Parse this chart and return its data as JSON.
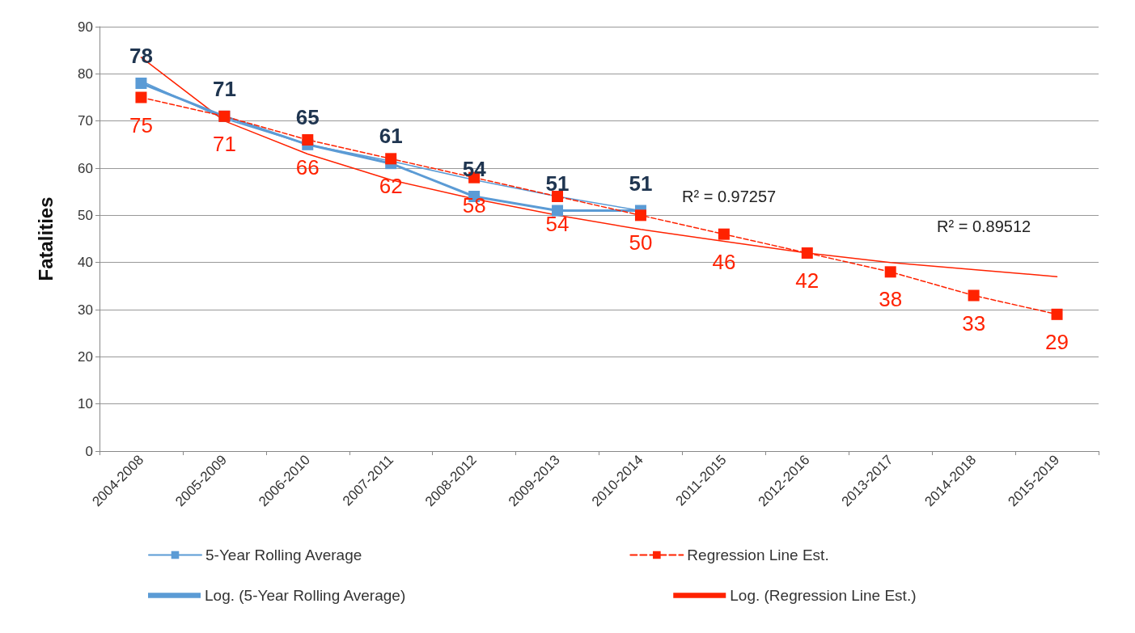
{
  "chart_data": {
    "type": "line",
    "ylabel": "Fatalities",
    "categories": [
      "2004-2008",
      "2005-2009",
      "2006-2010",
      "2007-2011",
      "2008-2012",
      "2009-2013",
      "2010-2014",
      "2011-2015",
      "2012-2016",
      "2013-2017",
      "2014-2018",
      "2015-2019"
    ],
    "series": [
      {
        "name": "5-Year Rolling Average",
        "color": "#5b9bd5",
        "marker": "square",
        "line_style": "solid",
        "data_labels": true,
        "values": [
          78,
          71,
          65,
          61,
          54,
          51,
          51,
          null,
          null,
          null,
          null,
          null
        ]
      },
      {
        "name": "Regression Line Est.",
        "color": "#ff2200",
        "marker": "square",
        "line_style": "dashed",
        "data_labels": true,
        "values": [
          75,
          71,
          66,
          62,
          58,
          54,
          50,
          46,
          42,
          38,
          33,
          29
        ]
      },
      {
        "name": "Log. (5-Year Rolling Average)",
        "color": "#5b9bd5",
        "marker": "none",
        "line_style": "solid",
        "values": [
          78.5,
          70.5,
          65,
          61.5,
          57.5,
          54,
          51,
          null,
          null,
          null,
          null,
          null
        ]
      },
      {
        "name": "Log. (Regression Line Est.)",
        "color": "#ff2200",
        "marker": "none",
        "line_style": "solid",
        "values": [
          83.5,
          70,
          63,
          57.5,
          53.5,
          50,
          47,
          44.5,
          42,
          40,
          38.5,
          37
        ]
      }
    ],
    "annotations": [
      "R² = 0.97257",
      "R² = 0.89512"
    ],
    "ylim": [
      0,
      90
    ],
    "yticks": [
      0,
      10,
      20,
      30,
      40,
      50,
      60,
      70,
      80,
      90
    ],
    "grid": "y",
    "legend": "bottom"
  }
}
